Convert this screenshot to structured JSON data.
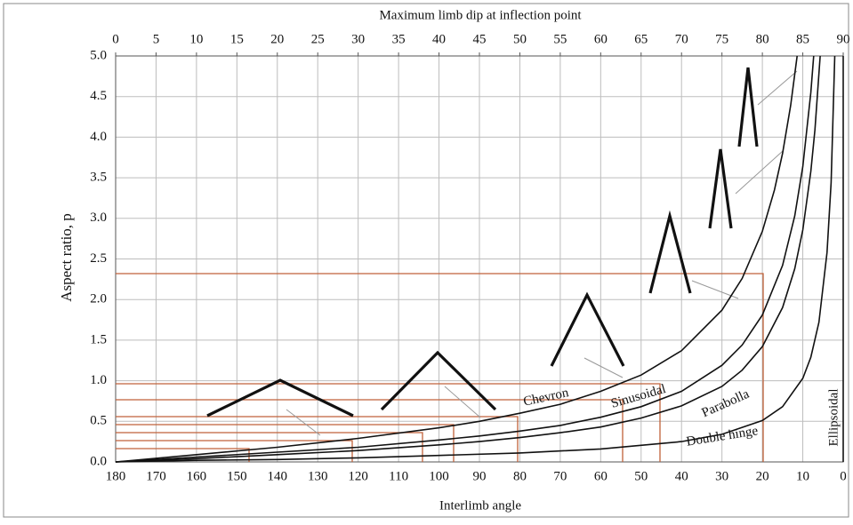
{
  "chart_data": {
    "type": "line",
    "x2_label": "Maximum limb dip at inflection point",
    "ylabel": "Aspect ratio, p",
    "xlabel": "Interlimb angle",
    "xlim": [
      180,
      0
    ],
    "xticks": [
      180,
      170,
      160,
      150,
      140,
      130,
      120,
      110,
      100,
      90,
      80,
      70,
      60,
      50,
      40,
      30,
      20,
      10,
      0
    ],
    "x2lim": [
      0,
      90
    ],
    "x2ticks": [
      0,
      5,
      10,
      15,
      20,
      25,
      30,
      35,
      40,
      45,
      50,
      55,
      60,
      65,
      70,
      75,
      80,
      85,
      90
    ],
    "ylim": [
      0,
      5
    ],
    "yticks": [
      {
        "value": 0,
        "label": "0.0"
      },
      0.5,
      {
        "value": 1,
        "label": "1.0"
      },
      1.5,
      {
        "value": 2,
        "label": "2.0"
      },
      2.5,
      {
        "value": 3,
        "label": "3.0"
      },
      3.5,
      {
        "value": 4,
        "label": "4.0"
      },
      4.5,
      {
        "value": 5,
        "label": "5.0"
      }
    ],
    "grid": true,
    "series": [
      {
        "name": "Chevron",
        "color": "#111111",
        "x": [
          180,
          160,
          140,
          120,
          100,
          90,
          80,
          70,
          60,
          50,
          40,
          30,
          25,
          20,
          17,
          15,
          13,
          11.4
        ],
        "values": [
          0,
          0.09,
          0.18,
          0.29,
          0.42,
          0.5,
          0.6,
          0.71,
          0.87,
          1.07,
          1.37,
          1.87,
          2.26,
          2.84,
          3.35,
          3.8,
          4.39,
          5.0
        ]
      },
      {
        "name": "Sinusoidal",
        "color": "#111111",
        "x": [
          180,
          160,
          140,
          120,
          100,
          90,
          80,
          70,
          60,
          50,
          40,
          30,
          25,
          20,
          15,
          12,
          10,
          8,
          7.3
        ],
        "values": [
          0,
          0.06,
          0.12,
          0.18,
          0.27,
          0.32,
          0.38,
          0.45,
          0.55,
          0.68,
          0.87,
          1.19,
          1.44,
          1.81,
          2.42,
          3.03,
          3.64,
          4.55,
          5.0
        ]
      },
      {
        "name": "Parabolla",
        "color": "#111111",
        "x": [
          180,
          160,
          140,
          120,
          100,
          90,
          80,
          70,
          60,
          50,
          40,
          30,
          25,
          20,
          15,
          12,
          10,
          8,
          7,
          5.7
        ],
        "values": [
          0,
          0.04,
          0.09,
          0.14,
          0.21,
          0.25,
          0.3,
          0.36,
          0.43,
          0.54,
          0.69,
          0.93,
          1.13,
          1.42,
          1.9,
          2.38,
          2.86,
          3.58,
          4.09,
          5.0
        ]
      },
      {
        "name": "Double hinge",
        "color": "#111111",
        "x": [
          180,
          160,
          140,
          120,
          100,
          80,
          60,
          40,
          30,
          20,
          15,
          10,
          8,
          6,
          4,
          3,
          2.1
        ],
        "values": [
          0,
          0.02,
          0.03,
          0.05,
          0.08,
          0.11,
          0.16,
          0.25,
          0.34,
          0.51,
          0.68,
          1.03,
          1.29,
          1.72,
          2.58,
          3.44,
          5.0
        ]
      },
      {
        "name": "Ellipsoidal",
        "color": "#111111",
        "x": [
          0,
          0
        ],
        "values": [
          0,
          5
        ]
      }
    ]
  }
}
